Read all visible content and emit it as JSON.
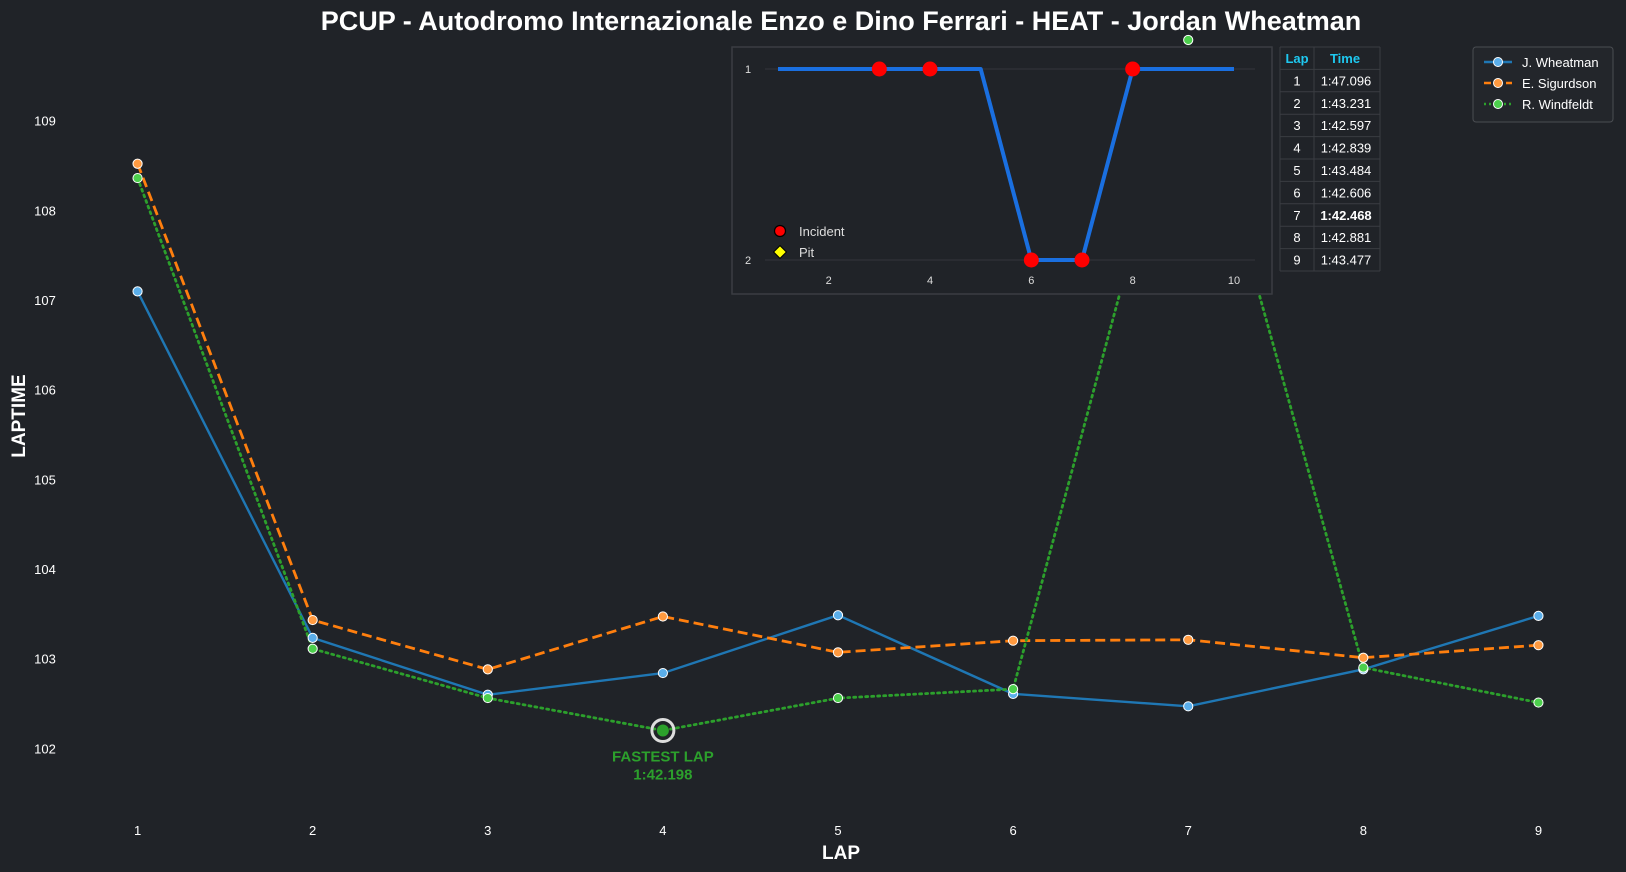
{
  "chart_data": {
    "type": "line",
    "title": "PCUP - Autodromo Internazionale Enzo e Dino Ferrari - HEAT - Jordan Wheatman",
    "xlabel": "LAP",
    "ylabel": "LAPTIME",
    "x": [
      1,
      2,
      3,
      4,
      5,
      6,
      7,
      8,
      9
    ],
    "yticks": [
      102,
      103,
      104,
      105,
      106,
      107,
      108,
      109
    ],
    "ylim": [
      101.2,
      109.9
    ],
    "xlim": [
      0.5,
      9.5
    ],
    "grid": false,
    "legend_position": "top-right",
    "series": [
      {
        "name": "J. Wheatman",
        "color": "#1f77b4",
        "marker_color": "#5aaeea",
        "dash": "",
        "values": [
          107.096,
          103.231,
          102.597,
          102.839,
          103.484,
          102.606,
          102.468,
          102.881,
          103.477
        ]
      },
      {
        "name": "E. Sigurdson",
        "color": "#ff7f0e",
        "marker_color": "#ff9a40",
        "dash": "10 5",
        "values": [
          108.52,
          103.43,
          102.88,
          103.47,
          103.07,
          103.2,
          103.21,
          103.01,
          103.15
        ]
      },
      {
        "name": "R. Windfeldt",
        "color": "#2ca02c",
        "marker_color": "#4ccf4c",
        "dash": "2 4",
        "values": [
          108.36,
          103.11,
          102.56,
          102.198,
          102.56,
          102.66,
          109.9,
          102.9,
          102.51
        ]
      }
    ],
    "annotation": {
      "line1": "FASTEST LAP",
      "line2": "1:42.198",
      "x": 4,
      "y": 102.198,
      "color": "#2ca02c"
    },
    "inset": {
      "type": "line",
      "x": [
        1,
        2,
        3,
        4,
        5,
        6,
        7,
        8,
        9,
        10
      ],
      "positions": [
        1,
        1,
        1,
        1,
        1,
        2,
        2,
        1,
        1,
        1
      ],
      "incident_laps": [
        3,
        4,
        6,
        7,
        8
      ],
      "pit_laps": [],
      "xticks": [
        2,
        4,
        6,
        8,
        10
      ],
      "yticks": [
        1,
        2
      ],
      "line_color": "#1a6fe0",
      "incident_color": "#ff0000",
      "pit_color": "#ffff00",
      "legend": {
        "incident": "Incident",
        "pit": "Pit"
      }
    },
    "table": {
      "header": {
        "lap": "Lap",
        "time": "Time"
      },
      "header_color": "#1ec8f0",
      "highlight_color": "#ffff33",
      "rows": [
        {
          "lap": "1",
          "time": "1:47.096",
          "best": false
        },
        {
          "lap": "2",
          "time": "1:43.231",
          "best": false
        },
        {
          "lap": "3",
          "time": "1:42.597",
          "best": false
        },
        {
          "lap": "4",
          "time": "1:42.839",
          "best": false
        },
        {
          "lap": "5",
          "time": "1:43.484",
          "best": false
        },
        {
          "lap": "6",
          "time": "1:42.606",
          "best": false
        },
        {
          "lap": "7",
          "time": "1:42.468",
          "best": true
        },
        {
          "lap": "8",
          "time": "1:42.881",
          "best": false
        },
        {
          "lap": "9",
          "time": "1:43.477",
          "best": false
        }
      ]
    }
  }
}
